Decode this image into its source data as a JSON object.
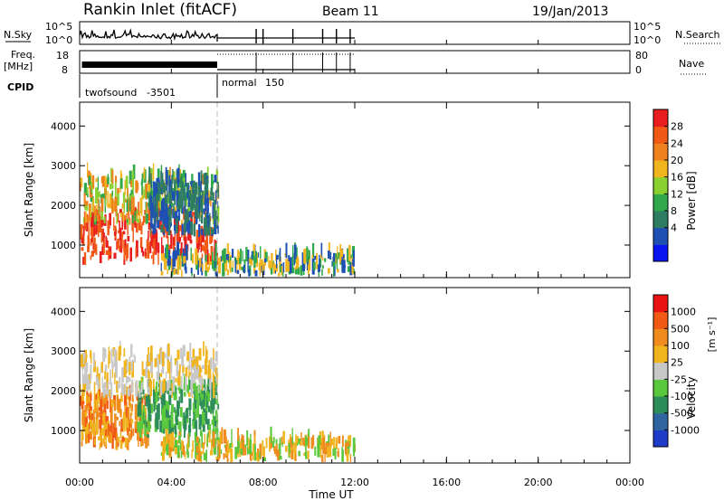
{
  "header": {
    "station": "Rankin Inlet (fitACF)",
    "beam": "Beam 11",
    "date": "19/Jan/2013"
  },
  "summary": {
    "nsky_label": "N.Sky",
    "nsky_ticks": [
      "10^5",
      "10^0"
    ],
    "nsearch_label": "N.Search",
    "freq_label_1": "Freq.",
    "freq_label_2": "[MHz]",
    "freq_ticks": [
      "18",
      "8"
    ],
    "nave_label": "Nave",
    "nave_ticks": [
      "80",
      "0"
    ],
    "cpid_label": "CPID",
    "modes": [
      {
        "name": "twofsound",
        "cpid": "-3501",
        "start_hour": 0.0,
        "end_hour": 6.0
      },
      {
        "name": "normal",
        "cpid": "150",
        "start_hour": 6.0,
        "end_hour": 12.0
      }
    ]
  },
  "chart_data": [
    {
      "type": "heatmap",
      "title": "",
      "xlabel": "Time UT",
      "ylabel": "Slant Range [km]",
      "xlim": [
        0,
        24
      ],
      "ylim": [
        180,
        4600
      ],
      "x_tick_labels": [
        "00:00",
        "04:00",
        "08:00",
        "12:00",
        "16:00",
        "20:00",
        "00:00"
      ],
      "y_ticks": [
        1000,
        2000,
        3000,
        4000
      ],
      "y_tick_labels": [
        "1000",
        "2000",
        "3000",
        "4000"
      ],
      "colorbar": {
        "label": "Power [dB]",
        "tick_labels": [
          "28",
          "24",
          "20",
          "16",
          "12",
          "8",
          "4"
        ],
        "colors": [
          "#0a14f0",
          "#1e50b4",
          "#2e7d62",
          "#2ea84a",
          "#8ad02e",
          "#f0b41e",
          "#f0821e",
          "#f05a14",
          "#e81e1e"
        ]
      },
      "regions": [
        {
          "hours": [
            0.0,
            6.0
          ],
          "range_km": [
            500,
            1800
          ],
          "level": "high",
          "colors": [
            "#e81e1e",
            "#f05a14"
          ]
        },
        {
          "hours": [
            0.0,
            6.0
          ],
          "range_km": [
            1500,
            2700
          ],
          "level": "mid",
          "colors": [
            "#f0821e",
            "#f0b41e",
            "#8ad02e",
            "#2ea84a"
          ]
        },
        {
          "hours": [
            3.0,
            6.0
          ],
          "range_km": [
            1200,
            2600
          ],
          "level": "low",
          "colors": [
            "#1e50b4",
            "#2e7d62"
          ]
        },
        {
          "hours": [
            3.5,
            12.0
          ],
          "range_km": [
            200,
            700
          ],
          "level": "low",
          "colors": [
            "#1e50b4",
            "#2ea84a",
            "#f0b41e"
          ]
        }
      ]
    },
    {
      "type": "heatmap",
      "title": "",
      "xlabel": "Time UT",
      "ylabel": "Slant Range [km]",
      "xlim": [
        0,
        24
      ],
      "ylim": [
        180,
        4600
      ],
      "x_tick_labels": [
        "00:00",
        "04:00",
        "08:00",
        "12:00",
        "16:00",
        "20:00",
        "00:00"
      ],
      "y_ticks": [
        1000,
        2000,
        3000,
        4000
      ],
      "y_tick_labels": [
        "1000",
        "2000",
        "3000",
        "4000"
      ],
      "colorbar": {
        "label": "Velocity",
        "unit": "[m s⁻¹]",
        "tick_labels": [
          "1000",
          "500",
          "100",
          "25",
          "-25",
          "-100",
          "-500",
          "-1000"
        ],
        "colors": [
          "#1e3cc8",
          "#2e64a0",
          "#2e8c5a",
          "#5ac83c",
          "#c8c8c8",
          "#f0b41e",
          "#f08c1e",
          "#f05a14",
          "#e81414"
        ]
      },
      "regions": [
        {
          "hours": [
            0.0,
            3.0
          ],
          "range_km": [
            500,
            1800
          ],
          "level": "away",
          "colors": [
            "#f08c1e",
            "#f0b41e",
            "#f05a14"
          ]
        },
        {
          "hours": [
            2.5,
            6.0
          ],
          "range_km": [
            800,
            2100
          ],
          "level": "toward",
          "colors": [
            "#2e8c5a",
            "#5ac83c"
          ]
        },
        {
          "hours": [
            0.0,
            6.0
          ],
          "range_km": [
            1800,
            2900
          ],
          "level": "near-zero",
          "colors": [
            "#c8c8c8",
            "#f0b41e"
          ]
        },
        {
          "hours": [
            3.5,
            12.0
          ],
          "range_km": [
            200,
            700
          ],
          "level": "mixed",
          "colors": [
            "#f08c1e",
            "#f0b41e",
            "#5ac83c"
          ]
        }
      ]
    }
  ]
}
